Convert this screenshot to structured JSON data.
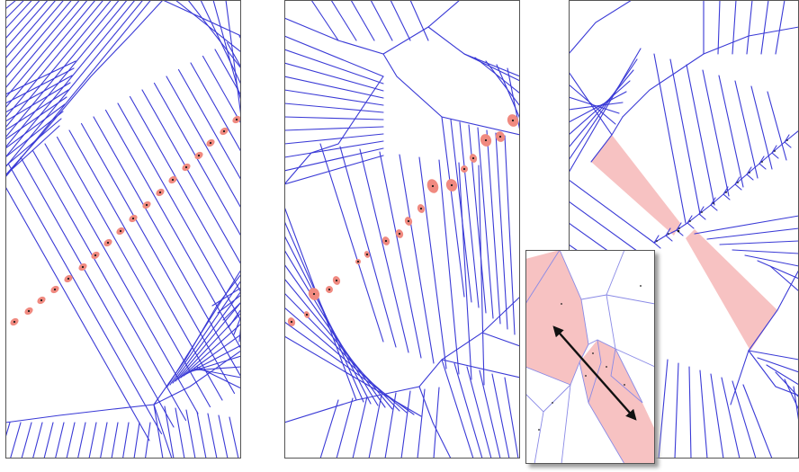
{
  "figure": {
    "panels": [
      {
        "id": "left",
        "caption": ""
      },
      {
        "id": "middle",
        "caption": ""
      },
      {
        "id": "right",
        "caption": ""
      }
    ],
    "colors": {
      "edge": "#3a3ad6",
      "edge_light": "#8a8ae6",
      "highlight_cell": "#f7c2c2",
      "site_halo": "#f08a80",
      "site_point": "#1a1a1a",
      "frame": "#555555",
      "arrow": "#111111"
    },
    "inset": {
      "has_double_arrow": true,
      "has_drop_shadow": true
    }
  }
}
